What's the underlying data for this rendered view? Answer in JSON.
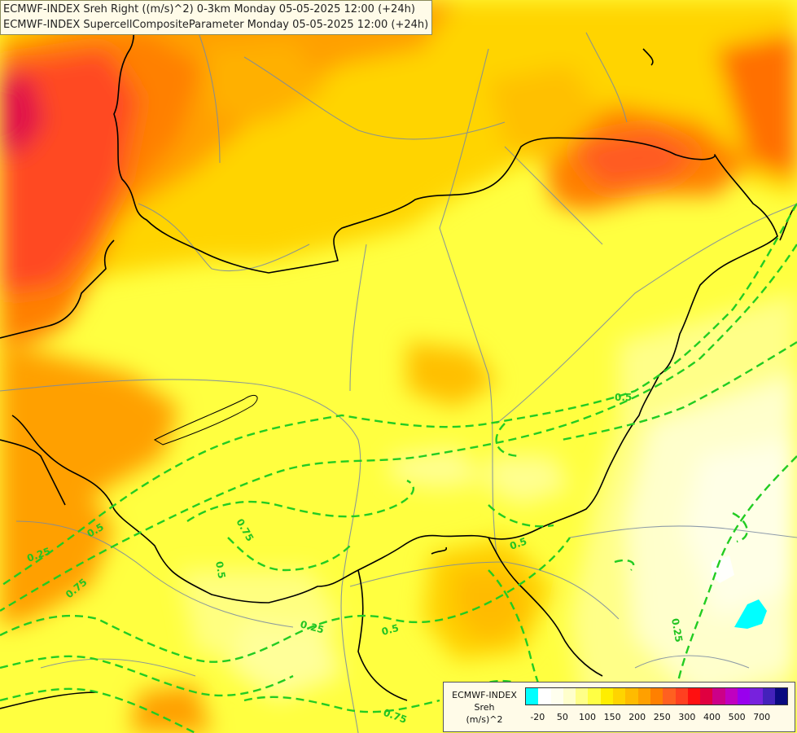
{
  "titles": {
    "line1": "ECMWF-INDEX Sreh Right ((m/s)^2) 0-3km Monday 05-05-2025 12:00 (+24h)",
    "line2": "ECMWF-INDEX SupercellCompositeParameter Monday 05-05-2025 12:00 (+24h)"
  },
  "legend": {
    "line1": "ECMWF-INDEX",
    "line2": "Sreh",
    "line3": "(m/s)^2",
    "ticks": [
      "-20",
      "50",
      "100",
      "150",
      "200",
      "250",
      "300",
      "400",
      "500",
      "700"
    ],
    "colors": [
      "#00ffff",
      "#ffffff",
      "#ffffee",
      "#ffffcc",
      "#ffff88",
      "#ffff44",
      "#ffee00",
      "#ffd400",
      "#ffbb00",
      "#ffa000",
      "#ff8000",
      "#ff6020",
      "#ff4020",
      "#ff1010",
      "#e00040",
      "#cc0088",
      "#c000c0",
      "#9900ee",
      "#7722dd",
      "#4422bb",
      "#0a0a80"
    ]
  },
  "contour_labels": [
    "0.5",
    "0.75",
    "0.5",
    "0.25",
    "0.75",
    "0.5",
    "0.5",
    "0.25",
    "0.5",
    "0.25",
    "0.75"
  ],
  "colors": {
    "sea_field": "#ffff40",
    "border": "#000000",
    "river": "#7a8aa0",
    "contour": "#22cc22"
  }
}
